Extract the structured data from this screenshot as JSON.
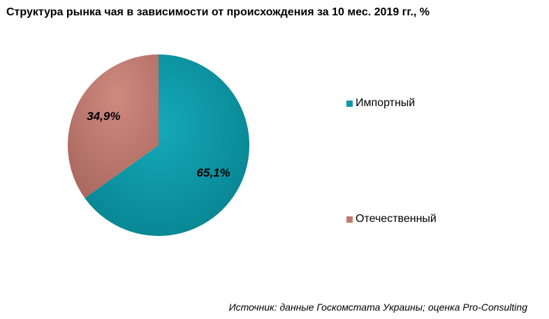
{
  "chart_data": {
    "type": "pie",
    "title": "Структура рынка чая в зависимости от происхождения за 10 мес. 2019 гг., %",
    "categories": [
      "Импортный",
      "Отечественный"
    ],
    "values": [
      65.1,
      34.9
    ],
    "data_labels": [
      "65,1%",
      "34,9%"
    ],
    "colors": [
      "#0E97A6",
      "#C4786E"
    ],
    "legend_position": "right",
    "start_angle_deg": 0,
    "direction": "clockwise"
  },
  "legend": {
    "items": [
      {
        "label": "Импортный",
        "color": "#0E97A6"
      },
      {
        "label": "Отечественный",
        "color": "#C4786E"
      }
    ]
  },
  "source": "Источник: данные Госкомстата Украины; оценка Pro-Consulting"
}
